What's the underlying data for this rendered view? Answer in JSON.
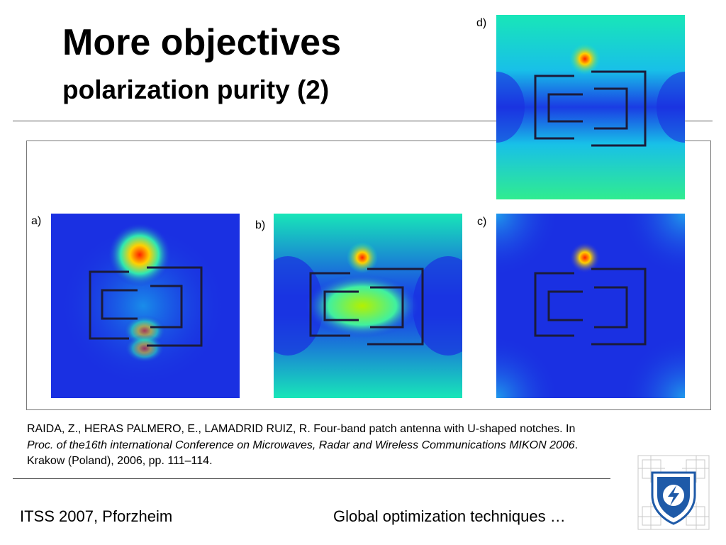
{
  "slide": {
    "title": "More objectives",
    "subtitle": "polarization purity (2)"
  },
  "figures": {
    "a": {
      "label": "a)"
    },
    "b": {
      "label": "b)"
    },
    "c": {
      "label": "c)"
    },
    "d": {
      "label": "d)"
    }
  },
  "citation": {
    "authors": "RAIDA, Z., HERAS PALMERO, E., LAMADRID RUIZ, R. Four-band patch antenna with U-shaped notches. In ",
    "proceedings": "Proc. of the16th international Conference on Microwaves, Radar and Wireless Communications MIKON 2006",
    "details": ". Krakow (Poland), 2006, pp. 111–114."
  },
  "footer": {
    "left": "ITSS 2007, Pforzheim",
    "right": "Global optimization techniques …"
  },
  "colors": {
    "field_low": "#1a2fe0",
    "field_mid": "#14e6c8",
    "field_high": "#a8f000",
    "hotspot": "#ff3a00",
    "logo_blue": "#1e5aa8"
  }
}
